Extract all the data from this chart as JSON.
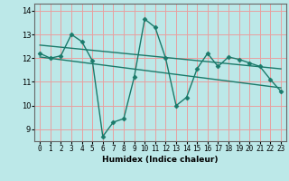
{
  "title": "",
  "xlabel": "Humidex (Indice chaleur)",
  "ylabel": "",
  "bg_color": "#bce8e8",
  "grid_color": "#e8a0a0",
  "line_color": "#1a7a6a",
  "xlim": [
    -0.5,
    23.5
  ],
  "ylim": [
    8.5,
    14.3
  ],
  "xticks": [
    0,
    1,
    2,
    3,
    4,
    5,
    6,
    7,
    8,
    9,
    10,
    11,
    12,
    13,
    14,
    15,
    16,
    17,
    18,
    19,
    20,
    21,
    22,
    23
  ],
  "yticks": [
    9,
    10,
    11,
    12,
    13,
    14
  ],
  "series1_x": [
    0,
    1,
    2,
    3,
    4,
    5,
    6,
    7,
    8,
    9,
    10,
    11,
    12,
    13,
    14,
    15,
    16,
    17,
    18,
    19,
    20,
    21,
    22,
    23
  ],
  "series1_y": [
    12.2,
    12.0,
    12.1,
    13.0,
    12.7,
    11.9,
    8.7,
    9.3,
    9.45,
    11.2,
    13.65,
    13.3,
    12.0,
    10.0,
    10.35,
    11.55,
    12.2,
    11.65,
    12.05,
    11.95,
    11.8,
    11.65,
    11.1,
    10.6
  ],
  "series2_x": [
    0,
    23
  ],
  "series2_y": [
    12.55,
    11.55
  ],
  "series3_x": [
    0,
    23
  ],
  "series3_y": [
    12.05,
    10.75
  ],
  "marker": "D",
  "markersize": 2.5,
  "linewidth": 1.0
}
